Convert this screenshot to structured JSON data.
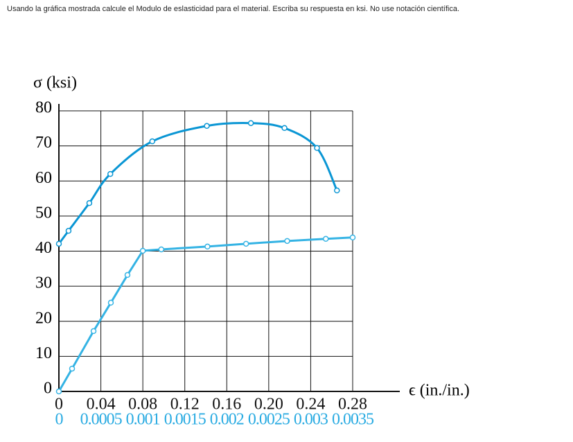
{
  "question": "Usando la gráfica mostrada calcule el Modulo de eslasticidad para el material.  Escriba su respuesta en ksi.  No use notación científica.",
  "chart_data": {
    "type": "line",
    "y_label": "σ (ksi)",
    "x_label": "ϵ (in./in.)",
    "xlim": [
      0,
      0.28
    ],
    "xticks": [
      0,
      0.04,
      0.08,
      0.12,
      0.16,
      {
        "value": 0.2,
        "label": "0.20"
      },
      0.24,
      0.28
    ],
    "xtick_color": "#111111",
    "x2lim": [
      0,
      0.0035
    ],
    "x2ticks": [
      0,
      0.0005,
      0.001,
      0.0015,
      0.002,
      0.0025,
      0.003,
      0.0035
    ],
    "x2tick_color": "#29abe2",
    "ylim": [
      0,
      80
    ],
    "yticks": [
      0,
      10,
      20,
      30,
      40,
      50,
      60,
      70,
      80
    ],
    "grid": true,
    "series": [
      {
        "color": "#0a96d4",
        "axis": "x",
        "smooth": true,
        "x": [
          0,
          0.0092,
          0.029,
          0.049,
          0.089,
          0.141,
          0.183,
          0.215,
          0.246,
          0.265
        ],
        "values": [
          42.1,
          45.8,
          53.7,
          62,
          71.3,
          75.7,
          76.5,
          75.1,
          69.4,
          57.3
        ]
      },
      {
        "color": "#34b3e4",
        "axis": "x2",
        "smooth": false,
        "x": [
          0,
          0.000157,
          0.000413,
          0.000619,
          0.000817,
          0.001,
          0.00122,
          0.00177,
          0.00223,
          0.00272,
          0.00318,
          0.0035
        ],
        "values": [
          0,
          6.5,
          17.2,
          25.3,
          33.2,
          40.1,
          40.5,
          41.3,
          42.1,
          42.9,
          43.5,
          43.9
        ]
      }
    ]
  }
}
